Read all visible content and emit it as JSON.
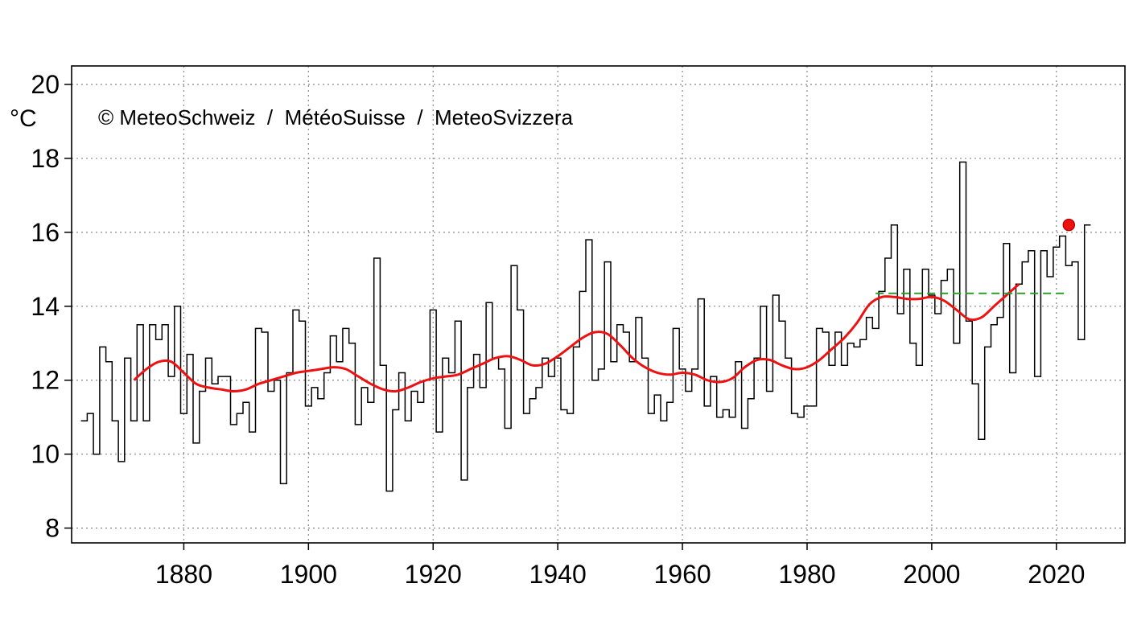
{
  "chart_data": {
    "type": "line",
    "title": "",
    "credit": "© MeteoSchweiz  /  MétéoSuisse  /  MeteoSvizzera",
    "unit": "°C",
    "xlabel": "",
    "ylabel": "",
    "xlim": [
      1862,
      2031
    ],
    "ylim": [
      7.6,
      20.5
    ],
    "grid": true,
    "legend": "none",
    "x_ticks": [
      1880,
      1900,
      1920,
      1940,
      1960,
      1980,
      2000,
      2020
    ],
    "y_ticks": [
      8,
      10,
      12,
      14,
      16,
      18,
      20
    ],
    "series": [
      {
        "style": "step",
        "color": "#000000",
        "start_year": 1864,
        "values": [
          10.9,
          11.1,
          10.0,
          12.9,
          12.5,
          10.9,
          9.8,
          12.6,
          10.9,
          13.5,
          10.9,
          13.5,
          13.1,
          13.5,
          12.1,
          14.0,
          11.1,
          12.7,
          10.3,
          11.7,
          12.6,
          11.9,
          12.1,
          12.1,
          10.8,
          11.1,
          11.4,
          10.6,
          13.4,
          13.3,
          11.7,
          12.0,
          9.2,
          12.2,
          13.9,
          13.6,
          11.3,
          11.8,
          11.5,
          12.2,
          13.2,
          12.5,
          13.4,
          13.0,
          10.8,
          11.8,
          11.4,
          15.3,
          12.4,
          9.0,
          11.2,
          12.2,
          10.9,
          11.7,
          11.4,
          12.0,
          13.9,
          10.6,
          12.6,
          12.2,
          13.6,
          9.3,
          11.8,
          12.7,
          11.8,
          14.1,
          12.6,
          12.3,
          10.7,
          15.1,
          13.9,
          11.1,
          11.5,
          11.8,
          12.6,
          12.1,
          12.6,
          11.2,
          11.1,
          12.9,
          14.4,
          15.8,
          12.0,
          12.3,
          15.2,
          12.5,
          13.5,
          13.3,
          12.5,
          13.7,
          12.6,
          11.1,
          11.6,
          10.9,
          11.4,
          13.4,
          12.3,
          11.7,
          12.3,
          14.2,
          11.3,
          12.1,
          11.0,
          11.2,
          11.0,
          12.5,
          10.7,
          11.5,
          12.6,
          14.0,
          11.7,
          14.3,
          13.6,
          12.6,
          11.1,
          11.0,
          11.3,
          11.3,
          13.4,
          13.3,
          12.4,
          13.3,
          12.4,
          13.0,
          12.9,
          13.1,
          13.7,
          13.4,
          14.4,
          15.3,
          16.2,
          13.8,
          15.0,
          13.0,
          12.4,
          15.0,
          14.3,
          13.8,
          14.7,
          15.0,
          13.0,
          17.9,
          13.6,
          11.9,
          10.4,
          12.9,
          13.5,
          13.7,
          15.7,
          12.2,
          14.6,
          15.2,
          15.5,
          12.1,
          15.5,
          14.8,
          15.6,
          15.9,
          15.1,
          15.2,
          13.1,
          16.2
        ]
      },
      {
        "style": "smooth",
        "color": "#ee1111",
        "points": [
          [
            1872,
            12.0
          ],
          [
            1874,
            12.3
          ],
          [
            1876,
            12.5
          ],
          [
            1878,
            12.5
          ],
          [
            1880,
            12.2
          ],
          [
            1882,
            11.9
          ],
          [
            1884,
            11.8
          ],
          [
            1886,
            11.75
          ],
          [
            1888,
            11.7
          ],
          [
            1890,
            11.75
          ],
          [
            1892,
            11.9
          ],
          [
            1894,
            12.0
          ],
          [
            1896,
            12.1
          ],
          [
            1898,
            12.2
          ],
          [
            1900,
            12.25
          ],
          [
            1902,
            12.3
          ],
          [
            1904,
            12.35
          ],
          [
            1906,
            12.3
          ],
          [
            1908,
            12.1
          ],
          [
            1910,
            11.9
          ],
          [
            1912,
            11.75
          ],
          [
            1914,
            11.7
          ],
          [
            1916,
            11.8
          ],
          [
            1918,
            11.95
          ],
          [
            1920,
            12.05
          ],
          [
            1922,
            12.1
          ],
          [
            1924,
            12.15
          ],
          [
            1926,
            12.3
          ],
          [
            1928,
            12.45
          ],
          [
            1930,
            12.6
          ],
          [
            1932,
            12.65
          ],
          [
            1934,
            12.55
          ],
          [
            1936,
            12.4
          ],
          [
            1938,
            12.45
          ],
          [
            1940,
            12.65
          ],
          [
            1942,
            12.9
          ],
          [
            1944,
            13.15
          ],
          [
            1946,
            13.3
          ],
          [
            1948,
            13.25
          ],
          [
            1950,
            12.95
          ],
          [
            1952,
            12.6
          ],
          [
            1954,
            12.35
          ],
          [
            1956,
            12.2
          ],
          [
            1958,
            12.15
          ],
          [
            1960,
            12.2
          ],
          [
            1962,
            12.15
          ],
          [
            1964,
            12.0
          ],
          [
            1966,
            11.95
          ],
          [
            1968,
            12.05
          ],
          [
            1970,
            12.35
          ],
          [
            1972,
            12.55
          ],
          [
            1974,
            12.55
          ],
          [
            1976,
            12.4
          ],
          [
            1978,
            12.3
          ],
          [
            1980,
            12.35
          ],
          [
            1982,
            12.55
          ],
          [
            1984,
            12.85
          ],
          [
            1986,
            13.15
          ],
          [
            1988,
            13.55
          ],
          [
            1990,
            14.05
          ],
          [
            1992,
            14.25
          ],
          [
            1994,
            14.25
          ],
          [
            1996,
            14.2
          ],
          [
            1998,
            14.2
          ],
          [
            2000,
            14.25
          ],
          [
            2002,
            14.15
          ],
          [
            2004,
            13.9
          ],
          [
            2006,
            13.65
          ],
          [
            2008,
            13.7
          ],
          [
            2010,
            14.0
          ],
          [
            2012,
            14.3
          ],
          [
            2014,
            14.6
          ]
        ]
      },
      {
        "style": "dashed",
        "color": "#2e9b2e",
        "from": 1991,
        "to": 2022,
        "value": 14.35
      },
      {
        "style": "marker",
        "color": "#ee1111",
        "x": 2022,
        "value": 16.2
      }
    ]
  }
}
